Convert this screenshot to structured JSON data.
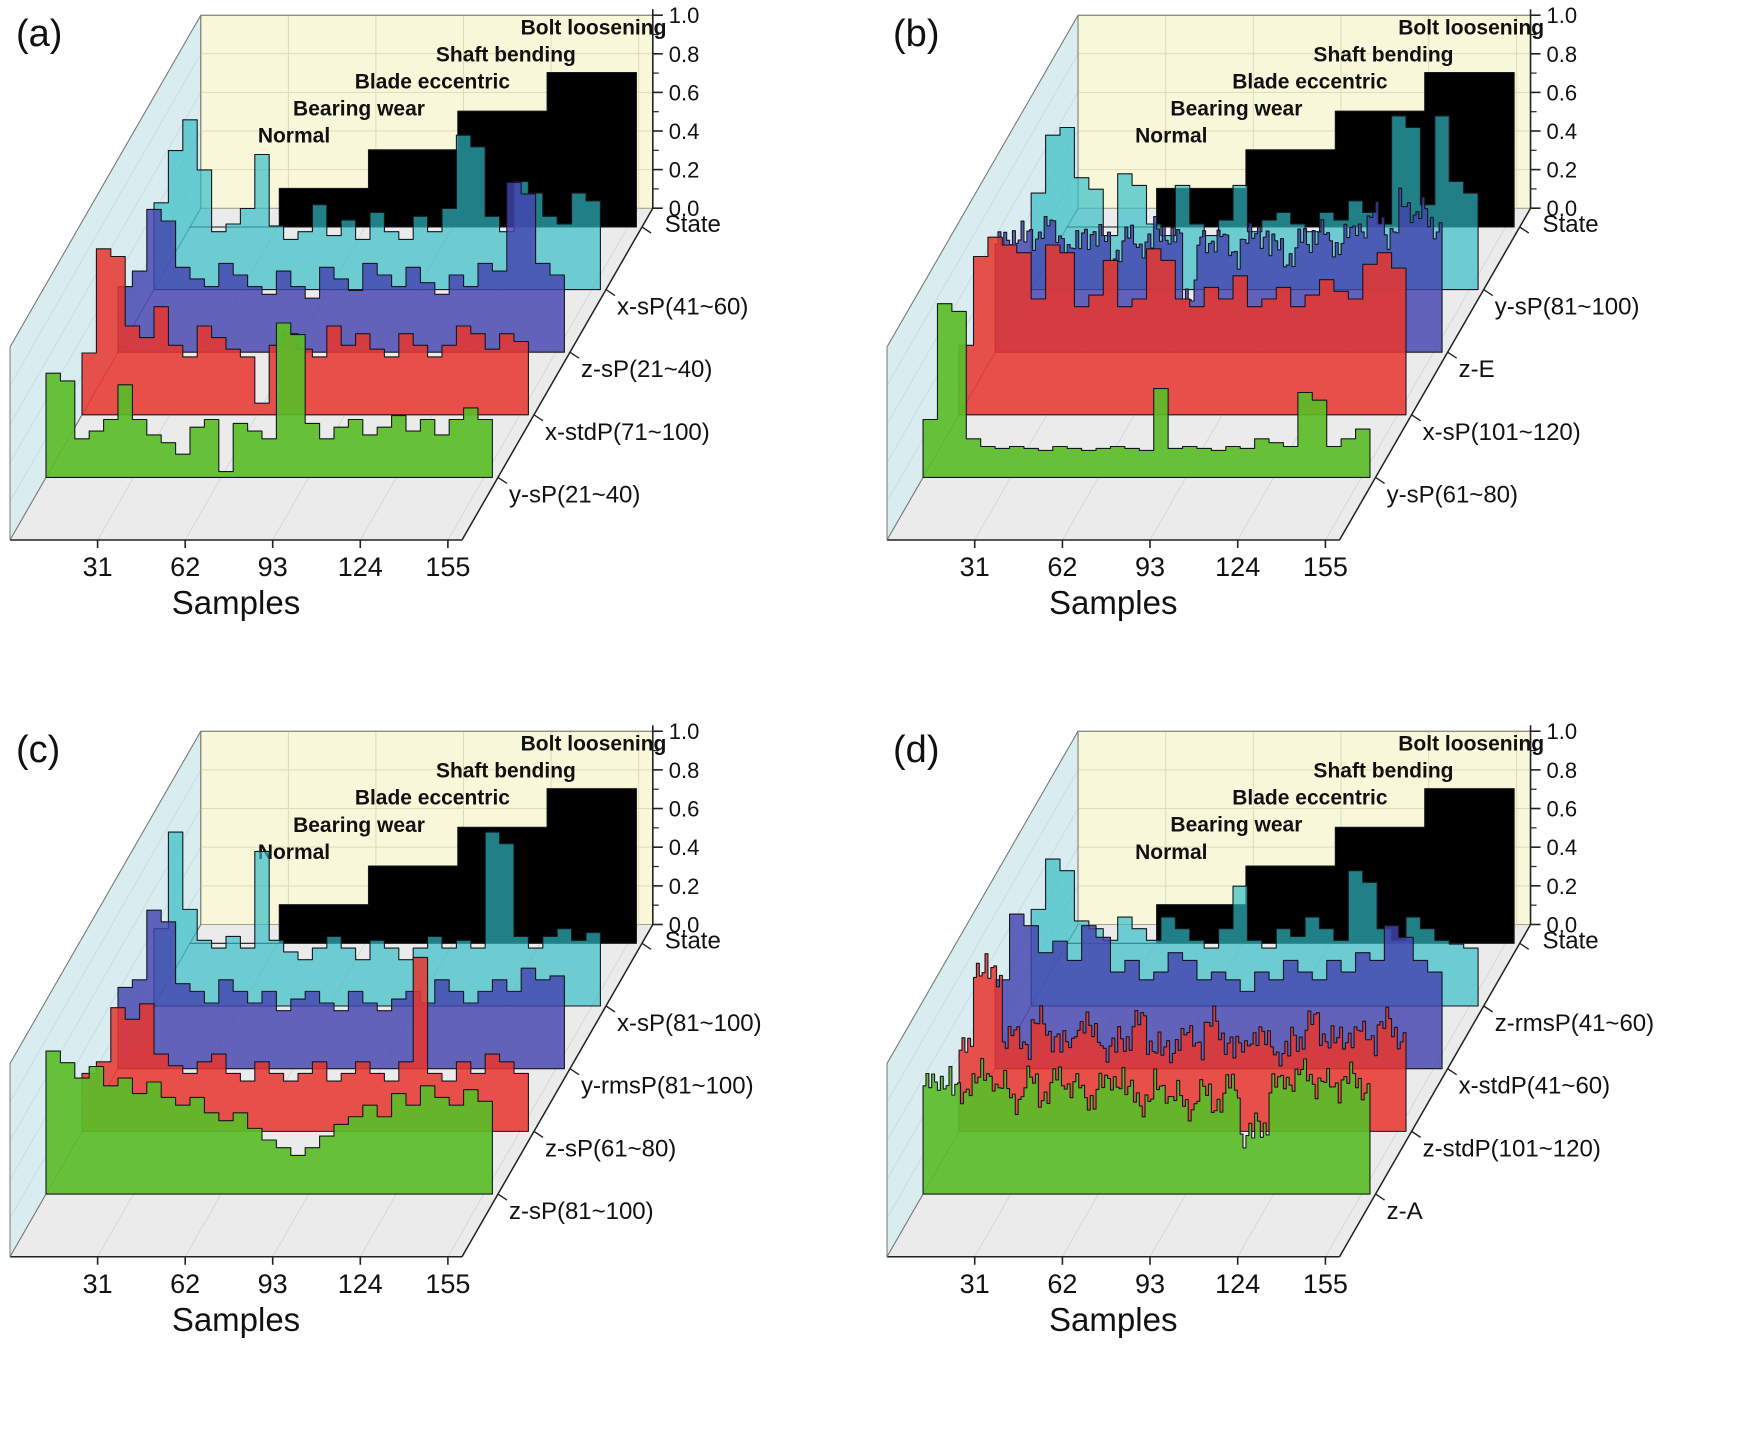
{
  "figure": {
    "background": "#ffffff",
    "panel_letters": [
      "(a)",
      "(b)",
      "(c)",
      "(d)"
    ]
  },
  "chart_data": [
    {
      "type": "area",
      "subtype": "3d-waterfall",
      "panel": "(a)",
      "xlabel": "Samples",
      "x_ticks": [
        31,
        62,
        93,
        124,
        155
      ],
      "x_range": [
        0,
        160
      ],
      "z_ticks": [
        "0.0",
        "0.2",
        "0.4",
        "0.6",
        "0.8",
        "1.0"
      ],
      "zlim": [
        0,
        1
      ],
      "state_axis_label": "State",
      "state_labels": [
        "Normal",
        "Bearing wear",
        "Blade eccentric",
        "Shaft bending",
        "Bolt loosening"
      ],
      "state_values": [
        0,
        0.2,
        0.4,
        0.6,
        0.8
      ],
      "state_color": "#000000",
      "wall_color": "#f9f7d9",
      "side_wall_color": "#d9ecf0",
      "floor_color": "#ebebeb",
      "series": [
        {
          "name": "x-sP(41~60)",
          "color": "#2fbcc4",
          "noisy": false,
          "values": [
            0.45,
            0.72,
            0.88,
            0.62,
            0.3,
            0.34,
            0.42,
            0.7,
            0.33,
            0.26,
            0.3,
            0.44,
            0.28,
            0.36,
            0.26,
            0.4,
            0.3,
            0.26,
            0.38,
            0.3,
            0.42,
            0.8,
            0.74,
            0.38,
            0.3,
            0.56,
            0.5,
            0.38,
            0.34,
            0.5,
            0.46
          ]
        },
        {
          "name": "z-sP(21~40)",
          "color": "#4343ae",
          "noisy": false,
          "values": [
            0.34,
            0.42,
            0.74,
            0.68,
            0.44,
            0.38,
            0.34,
            0.46,
            0.4,
            0.34,
            0.3,
            0.42,
            0.34,
            0.28,
            0.44,
            0.38,
            0.32,
            0.46,
            0.4,
            0.34,
            0.44,
            0.36,
            0.3,
            0.4,
            0.34,
            0.46,
            0.42,
            0.88,
            0.82,
            0.46,
            0.4
          ]
        },
        {
          "name": "x-stdP(71~100)",
          "color": "#e8352e",
          "noisy": false,
          "values": [
            0.32,
            0.86,
            0.82,
            0.46,
            0.4,
            0.56,
            0.36,
            0.3,
            0.46,
            0.4,
            0.34,
            0.3,
            0.06,
            0.36,
            0.42,
            0.34,
            0.3,
            0.46,
            0.36,
            0.42,
            0.34,
            0.3,
            0.42,
            0.36,
            0.3,
            0.36,
            0.46,
            0.42,
            0.34,
            0.42,
            0.38
          ]
        },
        {
          "name": "y-sP(21~40)",
          "color": "#5abd28",
          "noisy": false,
          "values": [
            0.54,
            0.5,
            0.2,
            0.24,
            0.3,
            0.48,
            0.3,
            0.22,
            0.18,
            0.12,
            0.26,
            0.3,
            0.03,
            0.28,
            0.24,
            0.2,
            0.8,
            0.74,
            0.28,
            0.2,
            0.26,
            0.3,
            0.22,
            0.26,
            0.32,
            0.24,
            0.3,
            0.22,
            0.3,
            0.36,
            0.3
          ]
        }
      ]
    },
    {
      "type": "area",
      "subtype": "3d-waterfall",
      "panel": "(b)",
      "xlabel": "Samples",
      "x_ticks": [
        31,
        62,
        93,
        124,
        155
      ],
      "x_range": [
        0,
        160
      ],
      "z_ticks": [
        "0.0",
        "0.2",
        "0.4",
        "0.6",
        "0.8",
        "1.0"
      ],
      "zlim": [
        0,
        1
      ],
      "state_axis_label": "State",
      "state_labels": [
        "Normal",
        "Bearing wear",
        "Blade eccentric",
        "Shaft bending",
        "Bolt loosening"
      ],
      "state_values": [
        0,
        0.2,
        0.4,
        0.6,
        0.8
      ],
      "state_color": "#000000",
      "wall_color": "#f9f7d9",
      "side_wall_color": "#d9ecf0",
      "floor_color": "#ebebeb",
      "series": [
        {
          "name": "y-sP(81~100)",
          "color": "#2fbcc4",
          "noisy": false,
          "values": [
            0.5,
            0.8,
            0.84,
            0.58,
            0.52,
            0.28,
            0.6,
            0.54,
            0.34,
            0.28,
            0.54,
            0.34,
            0.28,
            0.36,
            0.54,
            0.3,
            0.36,
            0.4,
            0.34,
            0.3,
            0.4,
            0.36,
            0.46,
            0.4,
            0.34,
            0.9,
            0.84,
            0.44,
            0.9,
            0.56,
            0.5
          ]
        },
        {
          "name": "z-E",
          "color": "#4343ae",
          "noisy": true,
          "values": [
            0.56,
            0.62,
            0.58,
            0.66,
            0.6,
            0.54,
            0.62,
            0.58,
            0.52,
            0.6,
            0.55,
            0.64,
            0.58,
            0.32,
            0.56,
            0.6,
            0.52,
            0.58,
            0.62,
            0.54,
            0.5,
            0.58,
            0.62,
            0.56,
            0.6,
            0.66,
            0.7,
            0.62,
            0.76,
            0.72,
            0.66
          ]
        },
        {
          "name": "x-sP(101~120)",
          "color": "#e8352e",
          "noisy": false,
          "values": [
            0.36,
            0.82,
            0.92,
            0.88,
            0.84,
            0.6,
            0.88,
            0.84,
            0.56,
            0.62,
            0.8,
            0.56,
            0.6,
            0.86,
            0.8,
            0.6,
            0.56,
            0.66,
            0.6,
            0.72,
            0.56,
            0.6,
            0.66,
            0.56,
            0.62,
            0.7,
            0.64,
            0.6,
            0.78,
            0.84,
            0.76
          ]
        },
        {
          "name": "y-sP(61~80)",
          "color": "#5abd28",
          "noisy": false,
          "values": [
            0.3,
            0.9,
            0.86,
            0.2,
            0.16,
            0.15,
            0.16,
            0.15,
            0.14,
            0.16,
            0.15,
            0.14,
            0.15,
            0.16,
            0.15,
            0.14,
            0.46,
            0.15,
            0.16,
            0.15,
            0.14,
            0.16,
            0.15,
            0.2,
            0.18,
            0.16,
            0.44,
            0.4,
            0.16,
            0.2,
            0.25
          ]
        }
      ]
    },
    {
      "type": "area",
      "subtype": "3d-waterfall",
      "panel": "(c)",
      "xlabel": "Samples",
      "x_ticks": [
        31,
        62,
        93,
        124,
        155
      ],
      "x_range": [
        0,
        160
      ],
      "z_ticks": [
        "0.0",
        "0.2",
        "0.4",
        "0.6",
        "0.8",
        "1.0"
      ],
      "zlim": [
        0,
        1
      ],
      "state_axis_label": "State",
      "state_labels": [
        "Normal",
        "Bearing wear",
        "Blade eccentric",
        "Shaft bending",
        "Bolt loosening"
      ],
      "state_values": [
        0,
        0.2,
        0.4,
        0.6,
        0.8
      ],
      "state_color": "#000000",
      "wall_color": "#f9f7d9",
      "side_wall_color": "#d9ecf0",
      "floor_color": "#ebebeb",
      "series": [
        {
          "name": "x-sP(81~100)",
          "color": "#2fbcc4",
          "noisy": false,
          "values": [
            0.4,
            0.9,
            0.5,
            0.34,
            0.3,
            0.36,
            0.3,
            0.8,
            0.34,
            0.28,
            0.24,
            0.3,
            0.36,
            0.3,
            0.24,
            0.34,
            0.3,
            0.24,
            0.3,
            0.36,
            0.3,
            0.34,
            0.3,
            0.9,
            0.84,
            0.36,
            0.3,
            0.36,
            0.4,
            0.34,
            0.38
          ]
        },
        {
          "name": "y-rmsP(81~100)",
          "color": "#4343ae",
          "noisy": false,
          "values": [
            0.42,
            0.46,
            0.82,
            0.76,
            0.44,
            0.4,
            0.34,
            0.46,
            0.4,
            0.34,
            0.4,
            0.3,
            0.36,
            0.4,
            0.34,
            0.3,
            0.4,
            0.34,
            0.3,
            0.36,
            0.4,
            0.34,
            0.46,
            0.4,
            0.34,
            0.4,
            0.46,
            0.4,
            0.52,
            0.46,
            0.48
          ]
        },
        {
          "name": "z-sP(61~80)",
          "color": "#e8352e",
          "noisy": false,
          "values": [
            0.3,
            0.36,
            0.64,
            0.58,
            0.66,
            0.4,
            0.34,
            0.3,
            0.36,
            0.4,
            0.3,
            0.26,
            0.36,
            0.3,
            0.26,
            0.3,
            0.36,
            0.26,
            0.3,
            0.36,
            0.3,
            0.26,
            0.36,
            0.9,
            0.3,
            0.26,
            0.36,
            0.3,
            0.4,
            0.36,
            0.3
          ]
        },
        {
          "name": "z-sP(81~100)",
          "color": "#5abd28",
          "noisy": false,
          "values": [
            0.74,
            0.68,
            0.6,
            0.66,
            0.56,
            0.6,
            0.52,
            0.58,
            0.5,
            0.46,
            0.5,
            0.42,
            0.38,
            0.42,
            0.34,
            0.28,
            0.24,
            0.2,
            0.24,
            0.3,
            0.36,
            0.4,
            0.46,
            0.4,
            0.52,
            0.46,
            0.56,
            0.5,
            0.46,
            0.54,
            0.48
          ]
        }
      ]
    },
    {
      "type": "area",
      "subtype": "3d-waterfall",
      "panel": "(d)",
      "xlabel": "Samples",
      "x_ticks": [
        31,
        62,
        93,
        124,
        155
      ],
      "x_range": [
        0,
        160
      ],
      "z_ticks": [
        "0.0",
        "0.2",
        "0.4",
        "0.6",
        "0.8",
        "1.0"
      ],
      "zlim": [
        0,
        1
      ],
      "state_axis_label": "State",
      "state_labels": [
        "Normal",
        "Bearing wear",
        "Blade eccentric",
        "Shaft bending",
        "Bolt loosening"
      ],
      "state_values": [
        0,
        0.2,
        0.4,
        0.6,
        0.8
      ],
      "state_color": "#000000",
      "wall_color": "#f9f7d9",
      "side_wall_color": "#d9ecf0",
      "floor_color": "#ebebeb",
      "series": [
        {
          "name": "z-rmsP(41~60)",
          "color": "#2fbcc4",
          "noisy": false,
          "values": [
            0.5,
            0.76,
            0.7,
            0.44,
            0.4,
            0.34,
            0.46,
            0.4,
            0.34,
            0.46,
            0.4,
            0.34,
            0.3,
            0.4,
            0.62,
            0.34,
            0.3,
            0.4,
            0.36,
            0.46,
            0.4,
            0.34,
            0.7,
            0.64,
            0.4,
            0.34,
            0.46,
            0.4,
            0.34,
            0.32,
            0.3
          ]
        },
        {
          "name": "x-stdP(41~60)",
          "color": "#4343ae",
          "noisy": false,
          "values": [
            0.46,
            0.8,
            0.74,
            0.6,
            0.66,
            0.56,
            0.74,
            0.68,
            0.5,
            0.56,
            0.46,
            0.5,
            0.6,
            0.56,
            0.46,
            0.5,
            0.46,
            0.4,
            0.5,
            0.46,
            0.56,
            0.5,
            0.46,
            0.56,
            0.5,
            0.6,
            0.56,
            0.74,
            0.68,
            0.56,
            0.5
          ]
        },
        {
          "name": "z-stdP(101~120)",
          "color": "#e8352e",
          "noisy": true,
          "values": [
            0.42,
            0.86,
            0.8,
            0.5,
            0.46,
            0.56,
            0.5,
            0.44,
            0.56,
            0.5,
            0.42,
            0.48,
            0.56,
            0.46,
            0.4,
            0.5,
            0.46,
            0.56,
            0.48,
            0.42,
            0.5,
            0.46,
            0.4,
            0.48,
            0.56,
            0.5,
            0.46,
            0.52,
            0.48,
            0.56,
            0.5
          ]
        },
        {
          "name": "z-A",
          "color": "#5abd28",
          "noisy": true,
          "values": [
            0.56,
            0.6,
            0.52,
            0.58,
            0.62,
            0.55,
            0.5,
            0.58,
            0.52,
            0.6,
            0.56,
            0.5,
            0.56,
            0.6,
            0.52,
            0.48,
            0.56,
            0.5,
            0.46,
            0.52,
            0.48,
            0.56,
            0.3,
            0.36,
            0.56,
            0.6,
            0.62,
            0.58,
            0.56,
            0.6,
            0.56
          ]
        }
      ]
    }
  ]
}
